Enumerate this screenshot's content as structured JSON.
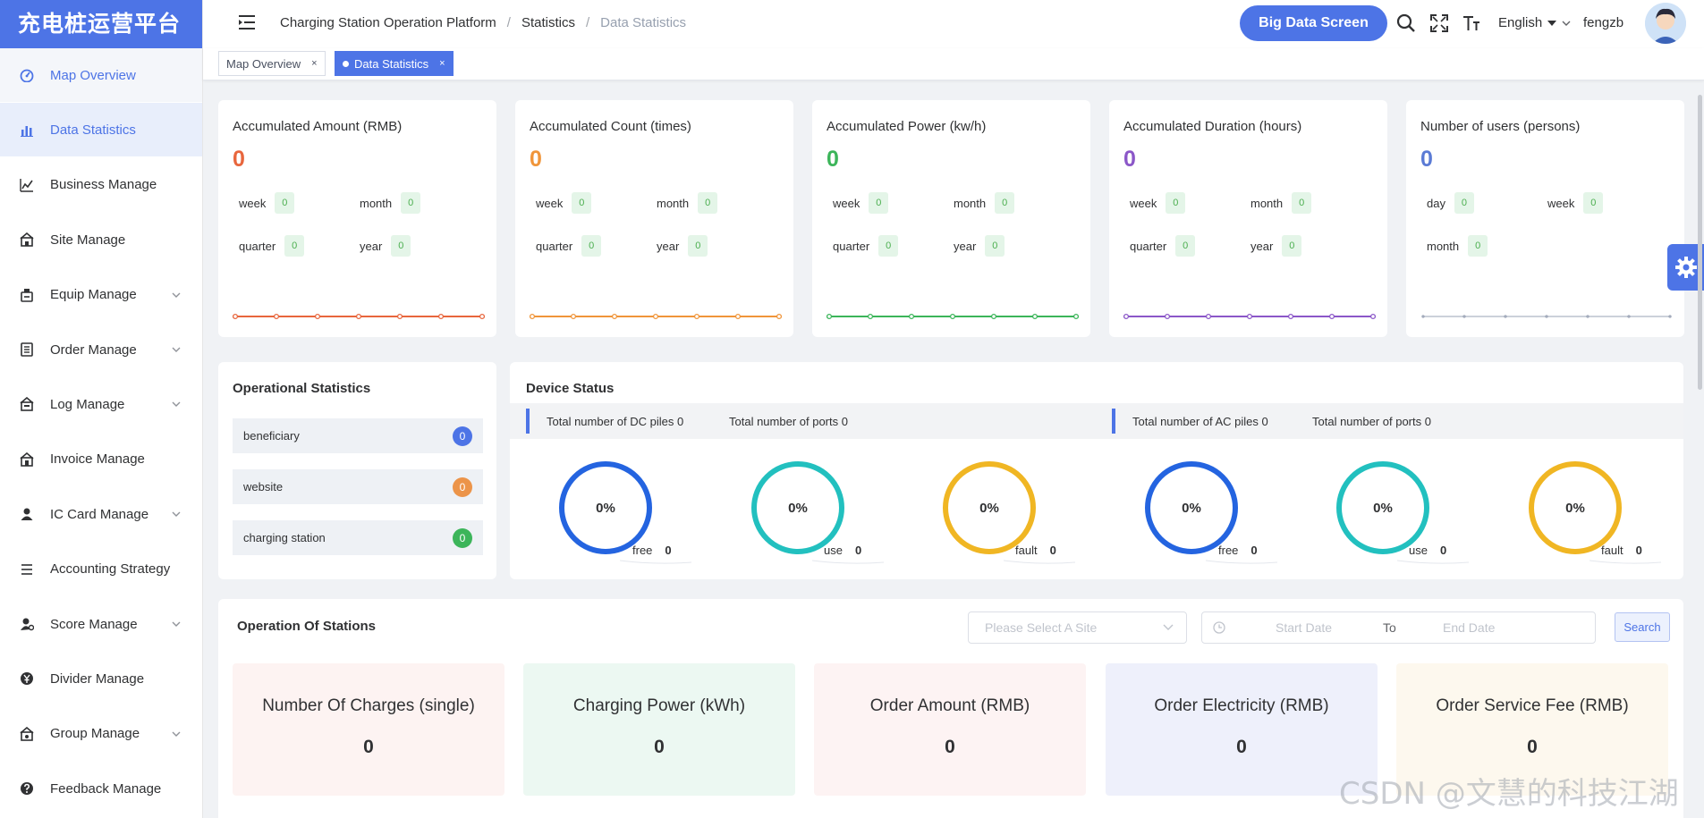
{
  "app": {
    "logo_text": "充电桩运营平台"
  },
  "sidebar": {
    "items": [
      {
        "label": "Map Overview",
        "icon": "dashboard-icon",
        "has_children": false
      },
      {
        "label": "Data Statistics",
        "icon": "bar-chart-icon",
        "has_children": false
      },
      {
        "label": "Business Manage",
        "icon": "line-chart-icon",
        "has_children": false
      },
      {
        "label": "Site Manage",
        "icon": "site-icon",
        "has_children": false
      },
      {
        "label": "Equip Manage",
        "icon": "equipment-icon",
        "has_children": true
      },
      {
        "label": "Order Manage",
        "icon": "order-icon",
        "has_children": true
      },
      {
        "label": "Log Manage",
        "icon": "log-icon",
        "has_children": true
      },
      {
        "label": "Invoice Manage",
        "icon": "invoice-icon",
        "has_children": false
      },
      {
        "label": "IC Card Manage",
        "icon": "user-icon",
        "has_children": true
      },
      {
        "label": "Accounting Strategy",
        "icon": "list-icon",
        "has_children": false
      },
      {
        "label": "Score Manage",
        "icon": "score-icon",
        "has_children": true
      },
      {
        "label": "Divider Manage",
        "icon": "yen-icon",
        "has_children": false
      },
      {
        "label": "Group Manage",
        "icon": "group-icon",
        "has_children": true
      },
      {
        "label": "Feedback Manage",
        "icon": "question-icon",
        "has_children": false
      }
    ]
  },
  "header": {
    "breadcrumb": [
      "Charging Station Operation Platform",
      "Statistics",
      "Data Statistics"
    ],
    "big_data_button": "Big Data Screen",
    "language": "English",
    "username": "fengzb"
  },
  "tabs": [
    {
      "label": "Map Overview",
      "active": false
    },
    {
      "label": "Data Statistics",
      "active": true
    }
  ],
  "stats": [
    {
      "title": "Accumulated Amount (RMB)",
      "value": "0",
      "color": "#e8663d",
      "rows": [
        [
          {
            "label": "week",
            "value": "0"
          },
          {
            "label": "month",
            "value": "0"
          }
        ],
        [
          {
            "label": "quarter",
            "value": "0"
          },
          {
            "label": "year",
            "value": "0"
          }
        ]
      ]
    },
    {
      "title": "Accumulated Count (times)",
      "value": "0",
      "color": "#f0953a",
      "rows": [
        [
          {
            "label": "week",
            "value": "0"
          },
          {
            "label": "month",
            "value": "0"
          }
        ],
        [
          {
            "label": "quarter",
            "value": "0"
          },
          {
            "label": "year",
            "value": "0"
          }
        ]
      ]
    },
    {
      "title": "Accumulated Power (kw/h)",
      "value": "0",
      "color": "#3cb55a",
      "rows": [
        [
          {
            "label": "week",
            "value": "0"
          },
          {
            "label": "month",
            "value": "0"
          }
        ],
        [
          {
            "label": "quarter",
            "value": "0"
          },
          {
            "label": "year",
            "value": "0"
          }
        ]
      ]
    },
    {
      "title": "Accumulated Duration (hours)",
      "value": "0",
      "color": "#8b57c8",
      "rows": [
        [
          {
            "label": "week",
            "value": "0"
          },
          {
            "label": "month",
            "value": "0"
          }
        ],
        [
          {
            "label": "quarter",
            "value": "0"
          },
          {
            "label": "year",
            "value": "0"
          }
        ]
      ]
    },
    {
      "title": "Number of users (persons)",
      "value": "0",
      "color": "#5b7bd5",
      "rows": [
        [
          {
            "label": "day",
            "value": "0"
          },
          {
            "label": "week",
            "value": "0"
          }
        ],
        [
          {
            "label": "month",
            "value": "0"
          }
        ]
      ]
    }
  ],
  "operational": {
    "title": "Operational Statistics",
    "items": [
      {
        "label": "beneficiary",
        "count": "0",
        "color": "#4d74e6"
      },
      {
        "label": "website",
        "count": "0",
        "color": "#ec9449"
      },
      {
        "label": "charging station",
        "count": "0",
        "color": "#3cb55a"
      }
    ]
  },
  "device": {
    "title": "Device Status",
    "dc": {
      "piles_label": "Total number of DC piles 0",
      "ports_label": "Total number of ports 0"
    },
    "ac": {
      "piles_label": "Total number of AC piles 0",
      "ports_label": "Total number of ports 0"
    },
    "rings": [
      {
        "percent": "0%",
        "label": "free",
        "value": "0",
        "color": "#2464e0"
      },
      {
        "percent": "0%",
        "label": "use",
        "value": "0",
        "color": "#22c0bf"
      },
      {
        "percent": "0%",
        "label": "fault",
        "value": "0",
        "color": "#f0b623"
      },
      {
        "percent": "0%",
        "label": "free",
        "value": "0",
        "color": "#2464e0"
      },
      {
        "percent": "0%",
        "label": "use",
        "value": "0",
        "color": "#22c0bf"
      },
      {
        "percent": "0%",
        "label": "fault",
        "value": "0",
        "color": "#f0b623"
      }
    ]
  },
  "stations": {
    "title": "Operation Of Stations",
    "site_placeholder": "Please Select A Site",
    "start_placeholder": "Start Date",
    "to_label": "To",
    "end_placeholder": "End Date",
    "search_label": "Search",
    "metrics": [
      {
        "title": "Number Of Charges (single)",
        "value": "0",
        "bg": "#fdf3f2"
      },
      {
        "title": "Charging Power (kWh)",
        "value": "0",
        "bg": "#ecf8f2"
      },
      {
        "title": "Order Amount (RMB)",
        "value": "0",
        "bg": "#fdf3f3"
      },
      {
        "title": "Order Electricity (RMB)",
        "value": "0",
        "bg": "#eef0fb"
      },
      {
        "title": "Order Service Fee (RMB)",
        "value": "0",
        "bg": "#fdf8ee"
      }
    ]
  },
  "watermark": "CSDN @文慧的科技江湖"
}
